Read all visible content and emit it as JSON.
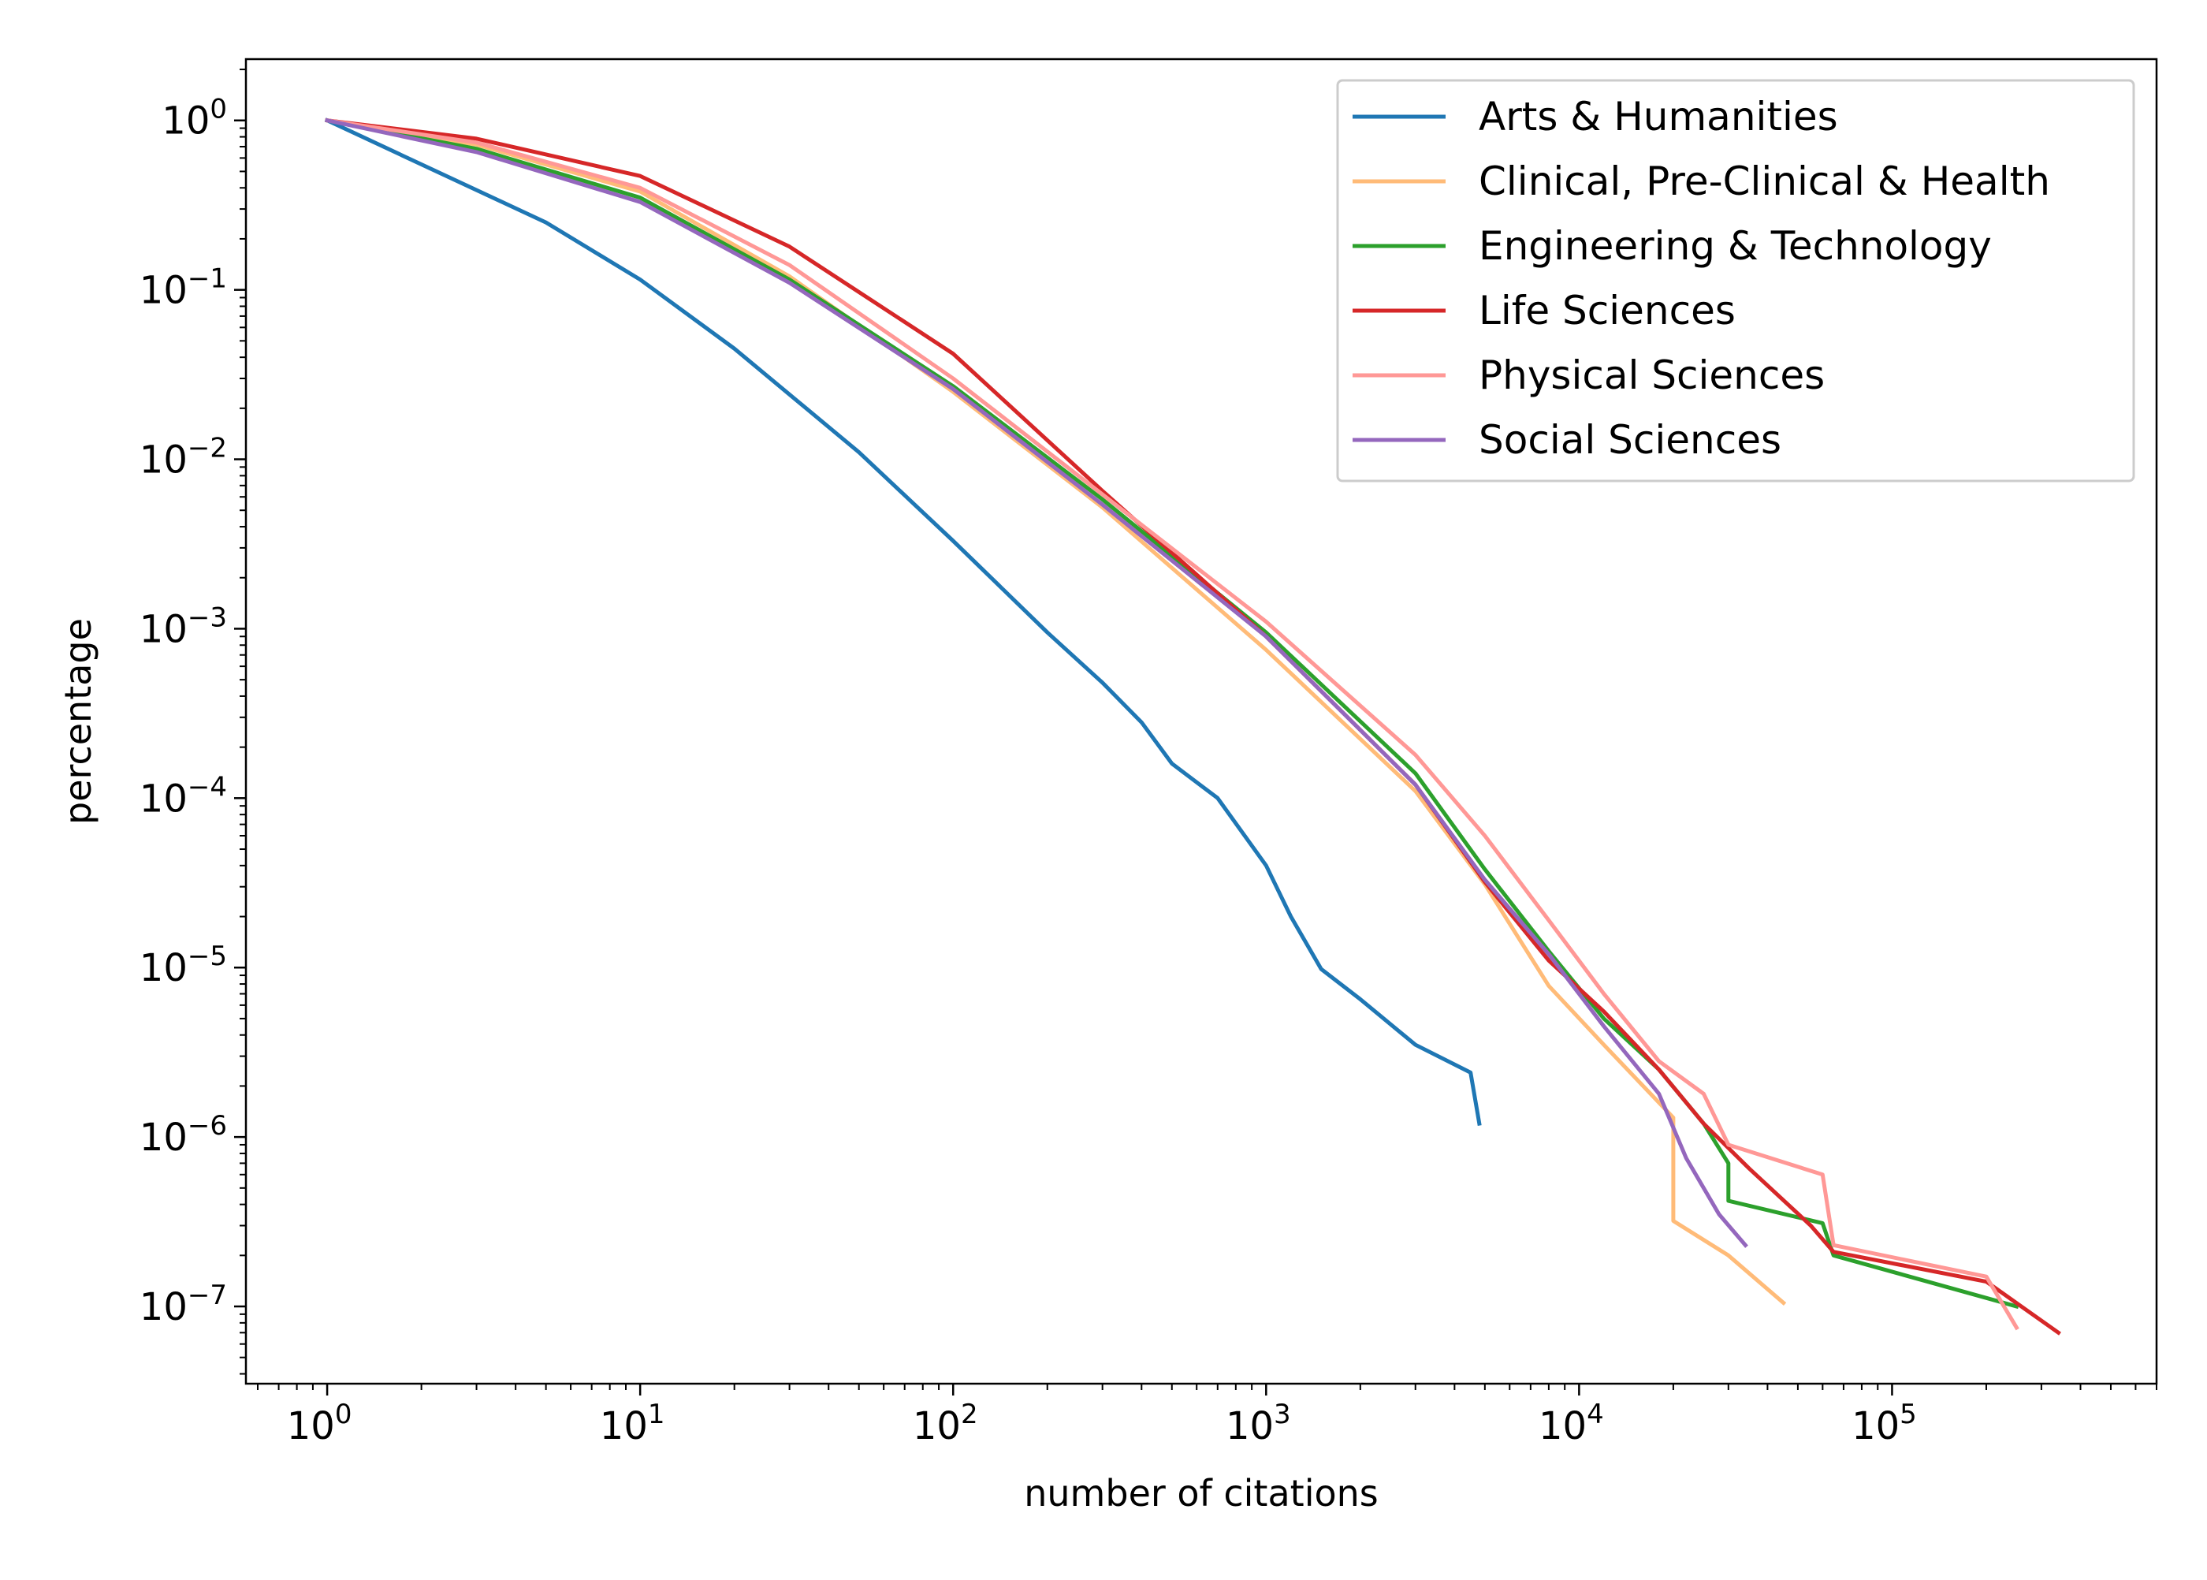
{
  "chart_data": {
    "type": "line",
    "title": "",
    "xlabel": "number of citations",
    "ylabel": "percentage",
    "xscale": "log",
    "yscale": "log",
    "xlim": [
      0.55,
      700000
    ],
    "ylim": [
      3.5e-08,
      2.3
    ],
    "grid": false,
    "legend_position": "top-right",
    "x_ticks": [
      {
        "value": 1,
        "base": "10",
        "exp": "0"
      },
      {
        "value": 10,
        "base": "10",
        "exp": "1"
      },
      {
        "value": 100,
        "base": "10",
        "exp": "2"
      },
      {
        "value": 1000,
        "base": "10",
        "exp": "3"
      },
      {
        "value": 10000,
        "base": "10",
        "exp": "4"
      },
      {
        "value": 100000,
        "base": "10",
        "exp": "5"
      }
    ],
    "y_ticks": [
      {
        "value": 1,
        "base": "10",
        "exp": "0"
      },
      {
        "value": 0.1,
        "base": "10",
        "exp": "−1"
      },
      {
        "value": 0.01,
        "base": "10",
        "exp": "−2"
      },
      {
        "value": 0.001,
        "base": "10",
        "exp": "−3"
      },
      {
        "value": 0.0001,
        "base": "10",
        "exp": "−4"
      },
      {
        "value": 1e-05,
        "base": "10",
        "exp": "−5"
      },
      {
        "value": 1e-06,
        "base": "10",
        "exp": "−6"
      },
      {
        "value": 1e-07,
        "base": "10",
        "exp": "−7"
      }
    ],
    "series": [
      {
        "name": "Arts & Humanities",
        "color": "#1f77b4",
        "points": [
          [
            1,
            1
          ],
          [
            2,
            0.55
          ],
          [
            5,
            0.25
          ],
          [
            10,
            0.115
          ],
          [
            20,
            0.045
          ],
          [
            50,
            0.011
          ],
          [
            100,
            0.0033
          ],
          [
            200,
            0.00095
          ],
          [
            300,
            0.00048
          ],
          [
            400,
            0.00028
          ],
          [
            500,
            0.00016
          ],
          [
            700,
            0.0001
          ],
          [
            1000,
            4e-05
          ],
          [
            1200,
            2e-05
          ],
          [
            1500,
            9.8e-06
          ],
          [
            2000,
            6.5e-06
          ],
          [
            3000,
            3.5e-06
          ],
          [
            4500,
            2.4e-06
          ],
          [
            4800,
            1.2e-06
          ]
        ]
      },
      {
        "name": "Clinical, Pre-Clinical & Health",
        "color": "#ffbb78",
        "points": [
          [
            1,
            1
          ],
          [
            3,
            0.72
          ],
          [
            10,
            0.38
          ],
          [
            30,
            0.12
          ],
          [
            100,
            0.025
          ],
          [
            300,
            0.0052
          ],
          [
            1000,
            0.00075
          ],
          [
            3000,
            0.00011
          ],
          [
            5000,
            3.1e-05
          ],
          [
            8000,
            7.8e-06
          ],
          [
            12000,
            3.5e-06
          ],
          [
            20000,
            1.3e-06
          ],
          [
            20000,
            3.2e-07
          ],
          [
            30000,
            2e-07
          ],
          [
            45000,
            1.05e-07
          ]
        ]
      },
      {
        "name": "Engineering & Technology",
        "color": "#2ca02c",
        "points": [
          [
            1,
            1
          ],
          [
            3,
            0.68
          ],
          [
            10,
            0.35
          ],
          [
            30,
            0.115
          ],
          [
            100,
            0.027
          ],
          [
            300,
            0.0058
          ],
          [
            1000,
            0.00095
          ],
          [
            3000,
            0.00014
          ],
          [
            5000,
            3.8e-05
          ],
          [
            8000,
            1.25e-05
          ],
          [
            12000,
            5e-06
          ],
          [
            18000,
            2.5e-06
          ],
          [
            25000,
            1.2e-06
          ],
          [
            30000,
            7e-07
          ],
          [
            30000,
            4.2e-07
          ],
          [
            60000,
            3.1e-07
          ],
          [
            65000,
            2e-07
          ],
          [
            250000,
            1e-07
          ]
        ]
      },
      {
        "name": "Life Sciences",
        "color": "#d62728",
        "points": [
          [
            1,
            1
          ],
          [
            3,
            0.78
          ],
          [
            10,
            0.47
          ],
          [
            30,
            0.18
          ],
          [
            100,
            0.042
          ],
          [
            300,
            0.0065
          ],
          [
            1000,
            0.0009
          ],
          [
            3000,
            0.00012
          ],
          [
            5000,
            3.2e-05
          ],
          [
            8000,
            1.1e-05
          ],
          [
            12000,
            5.5e-06
          ],
          [
            18000,
            2.5e-06
          ],
          [
            25000,
            1.2e-06
          ],
          [
            35000,
            6.5e-07
          ],
          [
            55000,
            3e-07
          ],
          [
            65000,
            2.1e-07
          ],
          [
            200000,
            1.4e-07
          ],
          [
            340000,
            7e-08
          ]
        ]
      },
      {
        "name": "Physical Sciences",
        "color": "#ff9896",
        "points": [
          [
            1,
            1
          ],
          [
            3,
            0.74
          ],
          [
            10,
            0.4
          ],
          [
            30,
            0.14
          ],
          [
            100,
            0.03
          ],
          [
            300,
            0.0062
          ],
          [
            1000,
            0.0011
          ],
          [
            3000,
            0.00018
          ],
          [
            5000,
            6e-05
          ],
          [
            8000,
            1.9e-05
          ],
          [
            12000,
            7e-06
          ],
          [
            18000,
            2.8e-06
          ],
          [
            25000,
            1.8e-06
          ],
          [
            30000,
            9e-07
          ],
          [
            60000,
            6e-07
          ],
          [
            65000,
            2.3e-07
          ],
          [
            200000,
            1.5e-07
          ],
          [
            250000,
            7.5e-08
          ]
        ]
      },
      {
        "name": "Social Sciences",
        "color": "#9467bd",
        "points": [
          [
            1,
            1
          ],
          [
            3,
            0.65
          ],
          [
            10,
            0.33
          ],
          [
            30,
            0.11
          ],
          [
            100,
            0.026
          ],
          [
            300,
            0.0054
          ],
          [
            1000,
            0.0009
          ],
          [
            3000,
            0.00012
          ],
          [
            5000,
            3.3e-05
          ],
          [
            8000,
            1.2e-05
          ],
          [
            12000,
            4.5e-06
          ],
          [
            18000,
            1.8e-06
          ],
          [
            22000,
            7.5e-07
          ],
          [
            28000,
            3.5e-07
          ],
          [
            34000,
            2.3e-07
          ]
        ]
      }
    ]
  }
}
